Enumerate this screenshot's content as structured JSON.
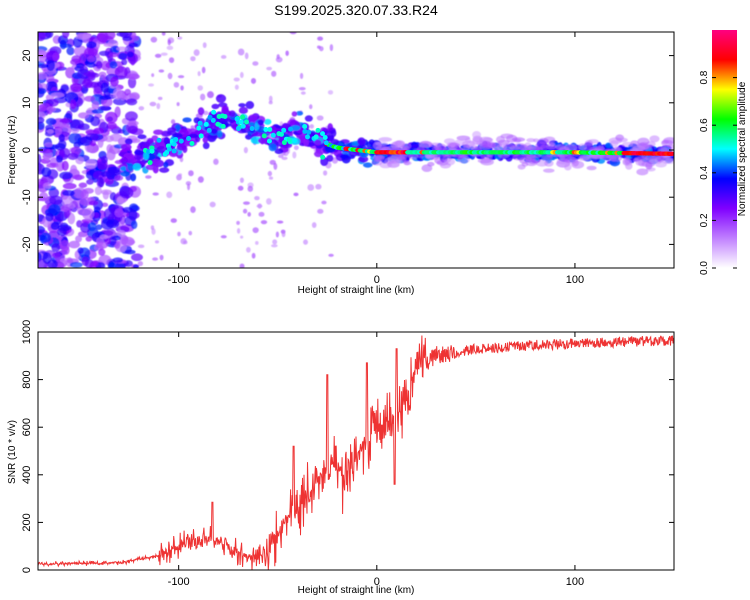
{
  "title": "S199.2025.320.07.33.R24",
  "chart_data": [
    {
      "type": "heatmap",
      "name": "spectrogram",
      "xlabel": "Height of straight line (km)",
      "ylabel": "Frequency (Hz)",
      "xlim": [
        -171,
        150
      ],
      "ylim": [
        -25,
        25
      ],
      "xticks": [
        -100,
        0,
        100
      ],
      "yticks": [
        -20,
        -10,
        0,
        10,
        20
      ],
      "colorbar": {
        "label": "Normalized spectral amplitude",
        "range": [
          0,
          1
        ],
        "ticks": [
          0.0,
          0.2,
          0.4,
          0.6,
          0.8
        ],
        "stops": [
          "#ffffff",
          "#c080ff",
          "#8000ff",
          "#0000ff",
          "#00ffff",
          "#00ff00",
          "#ffff00",
          "#ff0000",
          "#ff0080"
        ]
      },
      "ridge_track": [
        {
          "x": -125,
          "y": -2.5
        },
        {
          "x": -115,
          "y": 0
        },
        {
          "x": -100,
          "y": 1
        },
        {
          "x": -90,
          "y": 4
        },
        {
          "x": -80,
          "y": 6
        },
        {
          "x": -72,
          "y": 7
        },
        {
          "x": -60,
          "y": 4
        },
        {
          "x": -50,
          "y": 3
        },
        {
          "x": -40,
          "y": 4
        },
        {
          "x": -30,
          "y": 2
        },
        {
          "x": -20,
          "y": 0.5
        },
        {
          "x": -10,
          "y": 0
        },
        {
          "x": 0,
          "y": -0.5
        },
        {
          "x": 50,
          "y": -0.5
        },
        {
          "x": 100,
          "y": -0.5
        },
        {
          "x": 148,
          "y": -0.8
        }
      ]
    },
    {
      "type": "line",
      "name": "snr",
      "xlabel": "Height of straight line (km)",
      "ylabel": "SNR (10 * v/v)",
      "xlim": [
        -171,
        150
      ],
      "ylim": [
        0,
        1000
      ],
      "xticks": [
        -100,
        0,
        100
      ],
      "yticks": [
        0,
        200,
        400,
        600,
        800,
        1000
      ],
      "color": "#ee3333",
      "envelope": [
        {
          "x": -171,
          "y": 25
        },
        {
          "x": -130,
          "y": 30
        },
        {
          "x": -110,
          "y": 60
        },
        {
          "x": -95,
          "y": 120
        },
        {
          "x": -85,
          "y": 140
        },
        {
          "x": -75,
          "y": 90
        },
        {
          "x": -65,
          "y": 50
        },
        {
          "x": -55,
          "y": 70
        },
        {
          "x": -45,
          "y": 220
        },
        {
          "x": -35,
          "y": 300
        },
        {
          "x": -25,
          "y": 450
        },
        {
          "x": -15,
          "y": 400
        },
        {
          "x": -5,
          "y": 560
        },
        {
          "x": 5,
          "y": 620
        },
        {
          "x": 12,
          "y": 680
        },
        {
          "x": 20,
          "y": 830
        },
        {
          "x": 30,
          "y": 900
        },
        {
          "x": 50,
          "y": 930
        },
        {
          "x": 80,
          "y": 945
        },
        {
          "x": 110,
          "y": 955
        },
        {
          "x": 150,
          "y": 965
        }
      ],
      "spikes": [
        {
          "x": -83,
          "y": 285
        },
        {
          "x": -42,
          "y": 520
        },
        {
          "x": -25,
          "y": 820
        },
        {
          "x": -5,
          "y": 870
        },
        {
          "x": 10,
          "y": 930
        },
        {
          "x": 9,
          "y": 360
        }
      ]
    }
  ]
}
